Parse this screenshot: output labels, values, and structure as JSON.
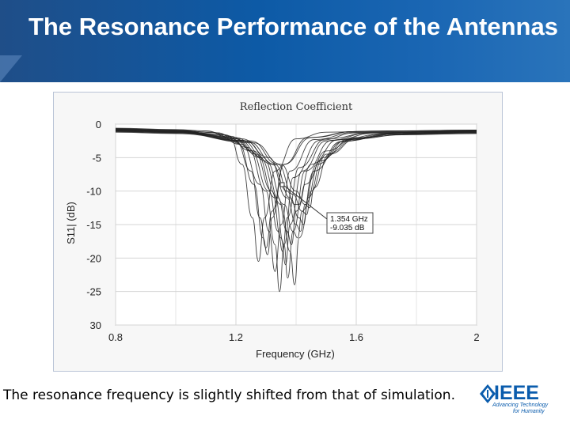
{
  "slide": {
    "title": "The Resonance Performance of the Antennas",
    "caption": "The resonance frequency is slightly shifted from that of simulation."
  },
  "logo": {
    "icon": "ieee-diamond-icon",
    "word": "IEEE",
    "tagline_line1": "Advancing Technology",
    "tagline_line2": "for Humanity",
    "color": "#0a5cad"
  },
  "chart_data": {
    "type": "line",
    "title": "Reflection Coefficient",
    "xlabel": "Frequency (GHz)",
    "ylabel": "S11| (dB)",
    "xlim": [
      0.8,
      2.0
    ],
    "ylim": [
      -30,
      0
    ],
    "x_ticks": [
      "0.8",
      "1.2",
      "1.6",
      "2"
    ],
    "y_ticks": [
      "0",
      "-5",
      "-10",
      "-15",
      "-20",
      "-25",
      "30"
    ],
    "grid": true,
    "line_color": "#222222",
    "marker": {
      "x": 1.354,
      "y": -9.035,
      "label_line1": "1.354 GHz",
      "label_line2": "-9.035 dB"
    },
    "series": [
      {
        "values": [
          [
            0.8,
            -0.6
          ],
          [
            1.0,
            -0.8
          ],
          [
            1.1,
            -1.0
          ],
          [
            1.18,
            -2.0
          ],
          [
            1.22,
            -6
          ],
          [
            1.255,
            -14
          ],
          [
            1.275,
            -20.5
          ],
          [
            1.295,
            -14
          ],
          [
            1.33,
            -7
          ],
          [
            1.4,
            -2.2
          ],
          [
            1.5,
            -1.2
          ],
          [
            1.7,
            -1.0
          ],
          [
            2.0,
            -0.9
          ]
        ]
      },
      {
        "values": [
          [
            0.8,
            -0.7
          ],
          [
            1.0,
            -0.9
          ],
          [
            1.12,
            -1.2
          ],
          [
            1.2,
            -2.5
          ],
          [
            1.25,
            -7
          ],
          [
            1.28,
            -14
          ],
          [
            1.3,
            -18.5
          ],
          [
            1.32,
            -13
          ],
          [
            1.36,
            -6
          ],
          [
            1.45,
            -2
          ],
          [
            1.6,
            -1.1
          ],
          [
            2.0,
            -0.9
          ]
        ]
      },
      {
        "values": [
          [
            0.8,
            -0.8
          ],
          [
            1.0,
            -1.0
          ],
          [
            1.15,
            -1.5
          ],
          [
            1.22,
            -3
          ],
          [
            1.28,
            -9
          ],
          [
            1.31,
            -16
          ],
          [
            1.33,
            -22
          ],
          [
            1.35,
            -15
          ],
          [
            1.38,
            -7
          ],
          [
            1.46,
            -2.3
          ],
          [
            1.6,
            -1.2
          ],
          [
            2.0,
            -1.0
          ]
        ]
      },
      {
        "values": [
          [
            0.8,
            -0.7
          ],
          [
            1.0,
            -1.0
          ],
          [
            1.16,
            -1.6
          ],
          [
            1.24,
            -3.5
          ],
          [
            1.3,
            -10
          ],
          [
            1.33,
            -18
          ],
          [
            1.345,
            -25
          ],
          [
            1.36,
            -18
          ],
          [
            1.39,
            -8
          ],
          [
            1.48,
            -2.4
          ],
          [
            1.6,
            -1.3
          ],
          [
            2.0,
            -1.0
          ]
        ]
      },
      {
        "values": [
          [
            0.8,
            -0.9
          ],
          [
            1.0,
            -1.1
          ],
          [
            1.17,
            -1.8
          ],
          [
            1.25,
            -4
          ],
          [
            1.31,
            -10
          ],
          [
            1.34,
            -16
          ],
          [
            1.355,
            -19
          ],
          [
            1.37,
            -14
          ],
          [
            1.41,
            -6.5
          ],
          [
            1.5,
            -2.2
          ],
          [
            1.65,
            -1.3
          ],
          [
            2.0,
            -1.1
          ]
        ]
      },
      {
        "values": [
          [
            0.8,
            -0.8
          ],
          [
            1.0,
            -1.0
          ],
          [
            1.18,
            -1.8
          ],
          [
            1.26,
            -4
          ],
          [
            1.32,
            -10
          ],
          [
            1.35,
            -17
          ],
          [
            1.365,
            -21
          ],
          [
            1.38,
            -15
          ],
          [
            1.42,
            -7
          ],
          [
            1.5,
            -2.5
          ],
          [
            1.65,
            -1.3
          ],
          [
            2.0,
            -1.0
          ]
        ]
      },
      {
        "values": [
          [
            0.8,
            -0.9
          ],
          [
            1.0,
            -1.1
          ],
          [
            1.19,
            -2
          ],
          [
            1.27,
            -4.5
          ],
          [
            1.33,
            -11
          ],
          [
            1.36,
            -18
          ],
          [
            1.372,
            -23
          ],
          [
            1.39,
            -16
          ],
          [
            1.43,
            -7
          ],
          [
            1.52,
            -2.4
          ],
          [
            1.67,
            -1.3
          ],
          [
            2.0,
            -1.1
          ]
        ]
      },
      {
        "values": [
          [
            0.8,
            -1.0
          ],
          [
            1.0,
            -1.2
          ],
          [
            1.2,
            -2.2
          ],
          [
            1.28,
            -5
          ],
          [
            1.34,
            -11
          ],
          [
            1.37,
            -16
          ],
          [
            1.385,
            -18
          ],
          [
            1.4,
            -13
          ],
          [
            1.45,
            -6
          ],
          [
            1.54,
            -2.3
          ],
          [
            1.7,
            -1.4
          ],
          [
            2.0,
            -1.2
          ]
        ]
      },
      {
        "values": [
          [
            0.8,
            -0.9
          ],
          [
            1.0,
            -1.1
          ],
          [
            1.2,
            -2
          ],
          [
            1.29,
            -5
          ],
          [
            1.35,
            -12
          ],
          [
            1.38,
            -19
          ],
          [
            1.395,
            -24
          ],
          [
            1.41,
            -17
          ],
          [
            1.46,
            -7
          ],
          [
            1.55,
            -2.6
          ],
          [
            1.7,
            -1.4
          ],
          [
            2.0,
            -1.1
          ]
        ]
      },
      {
        "values": [
          [
            0.8,
            -1.0
          ],
          [
            1.0,
            -1.2
          ],
          [
            1.22,
            -2.4
          ],
          [
            1.3,
            -5.5
          ],
          [
            1.36,
            -12
          ],
          [
            1.39,
            -16
          ],
          [
            1.405,
            -17
          ],
          [
            1.42,
            -13
          ],
          [
            1.47,
            -6
          ],
          [
            1.56,
            -2.5
          ],
          [
            1.72,
            -1.5
          ],
          [
            2.0,
            -1.2
          ]
        ]
      },
      {
        "values": [
          [
            0.8,
            -0.9
          ],
          [
            1.0,
            -1.1
          ],
          [
            1.22,
            -2.2
          ],
          [
            1.31,
            -5
          ],
          [
            1.37,
            -11
          ],
          [
            1.4,
            -15
          ],
          [
            1.415,
            -16
          ],
          [
            1.43,
            -12
          ],
          [
            1.48,
            -5.5
          ],
          [
            1.57,
            -2.3
          ],
          [
            1.72,
            -1.4
          ],
          [
            2.0,
            -1.1
          ]
        ]
      },
      {
        "values": [
          [
            0.8,
            -1.1
          ],
          [
            1.0,
            -1.3
          ],
          [
            1.24,
            -2.6
          ],
          [
            1.33,
            -6
          ],
          [
            1.38,
            -11
          ],
          [
            1.41,
            -14
          ],
          [
            1.425,
            -15
          ],
          [
            1.44,
            -11
          ],
          [
            1.49,
            -5
          ],
          [
            1.58,
            -2.3
          ],
          [
            1.73,
            -1.5
          ],
          [
            2.0,
            -1.3
          ]
        ]
      },
      {
        "values": [
          [
            0.8,
            -1.0
          ],
          [
            1.0,
            -1.2
          ],
          [
            1.25,
            -2.5
          ],
          [
            1.34,
            -6
          ],
          [
            1.39,
            -10.5
          ],
          [
            1.42,
            -13
          ],
          [
            1.435,
            -13.5
          ],
          [
            1.45,
            -10
          ],
          [
            1.5,
            -4.5
          ],
          [
            1.6,
            -2.1
          ],
          [
            1.75,
            -1.4
          ],
          [
            2.0,
            -1.2
          ]
        ]
      },
      {
        "values": [
          [
            0.8,
            -1.2
          ],
          [
            1.0,
            -1.4
          ],
          [
            1.26,
            -2.8
          ],
          [
            1.35,
            -6
          ],
          [
            1.4,
            -10
          ],
          [
            1.43,
            -12
          ],
          [
            1.445,
            -12.5
          ],
          [
            1.46,
            -9.5
          ],
          [
            1.51,
            -4.5
          ],
          [
            1.6,
            -2.2
          ],
          [
            1.75,
            -1.6
          ],
          [
            2.0,
            -1.4
          ]
        ]
      },
      {
        "values": [
          [
            0.8,
            -0.7
          ],
          [
            1.0,
            -0.9
          ],
          [
            1.14,
            -1.3
          ],
          [
            1.21,
            -3
          ],
          [
            1.26,
            -9
          ],
          [
            1.29,
            -17
          ],
          [
            1.305,
            -19.5
          ],
          [
            1.32,
            -14
          ],
          [
            1.36,
            -6
          ],
          [
            1.44,
            -2
          ],
          [
            1.6,
            -1.1
          ],
          [
            2.0,
            -0.9
          ]
        ]
      },
      {
        "values": [
          [
            0.8,
            -1.1
          ],
          [
            1.0,
            -1.3
          ],
          [
            1.23,
            -2.5
          ],
          [
            1.32,
            -6
          ],
          [
            1.37,
            -10
          ],
          [
            1.395,
            -12
          ],
          [
            1.41,
            -12
          ],
          [
            1.43,
            -9
          ],
          [
            1.5,
            -4
          ],
          [
            1.6,
            -2
          ],
          [
            1.78,
            -1.5
          ],
          [
            2.0,
            -1.3
          ]
        ]
      }
    ]
  }
}
